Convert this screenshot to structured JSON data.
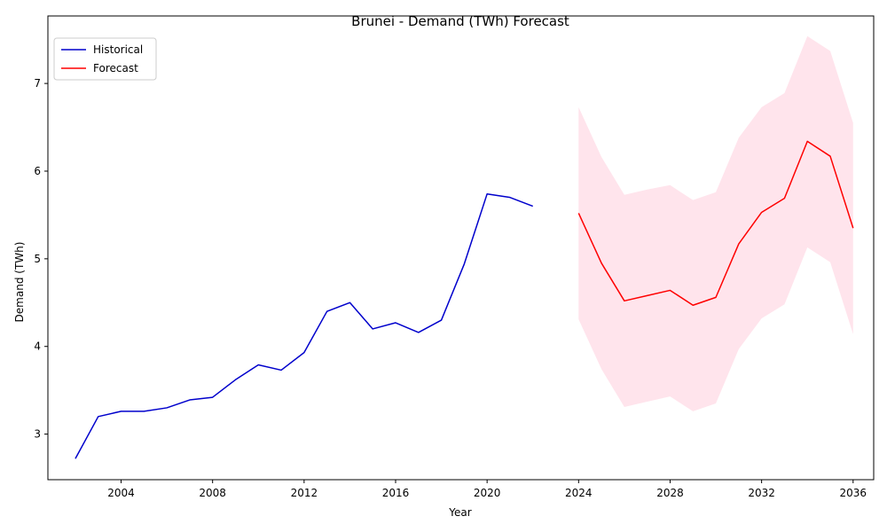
{
  "chart_data": {
    "type": "line",
    "title": "Brunei - Demand (TWh) Forecast",
    "xlabel": "Year",
    "ylabel": "Demand (TWh)",
    "xlim": [
      2000.8,
      2036.9
    ],
    "ylim": [
      2.48,
      7.77
    ],
    "x_ticks": [
      2004,
      2008,
      2012,
      2016,
      2020,
      2024,
      2028,
      2032,
      2036
    ],
    "y_ticks": [
      3,
      4,
      5,
      6,
      7
    ],
    "grid": false,
    "legend_position": "top-left",
    "series": [
      {
        "name": "Historical",
        "color": "#0000cc",
        "x": [
          2002,
          2003,
          2004,
          2005,
          2006,
          2007,
          2008,
          2009,
          2010,
          2011,
          2012,
          2013,
          2014,
          2015,
          2016,
          2017,
          2018,
          2019,
          2020,
          2021,
          2022
        ],
        "values": [
          2.72,
          3.2,
          3.26,
          3.26,
          3.3,
          3.39,
          3.42,
          3.62,
          3.79,
          3.73,
          3.93,
          4.4,
          4.5,
          4.2,
          4.27,
          4.16,
          4.3,
          4.94,
          5.74,
          5.7,
          5.6
        ]
      },
      {
        "name": "Forecast",
        "color": "#ff0000",
        "x": [
          2024,
          2025,
          2026,
          2027,
          2028,
          2029,
          2030,
          2031,
          2032,
          2033,
          2034,
          2035,
          2036
        ],
        "values": [
          5.52,
          4.95,
          4.52,
          4.58,
          4.64,
          4.47,
          4.56,
          5.17,
          5.53,
          5.69,
          6.34,
          6.17,
          5.35
        ],
        "lower": [
          4.31,
          3.74,
          3.31,
          3.37,
          3.43,
          3.26,
          3.35,
          3.97,
          4.32,
          4.48,
          5.13,
          4.96,
          4.14
        ],
        "upper": [
          6.73,
          6.16,
          5.73,
          5.79,
          5.84,
          5.67,
          5.76,
          6.38,
          6.73,
          6.89,
          7.54,
          7.37,
          6.55
        ],
        "band_color": "#ffe4ec"
      }
    ]
  }
}
